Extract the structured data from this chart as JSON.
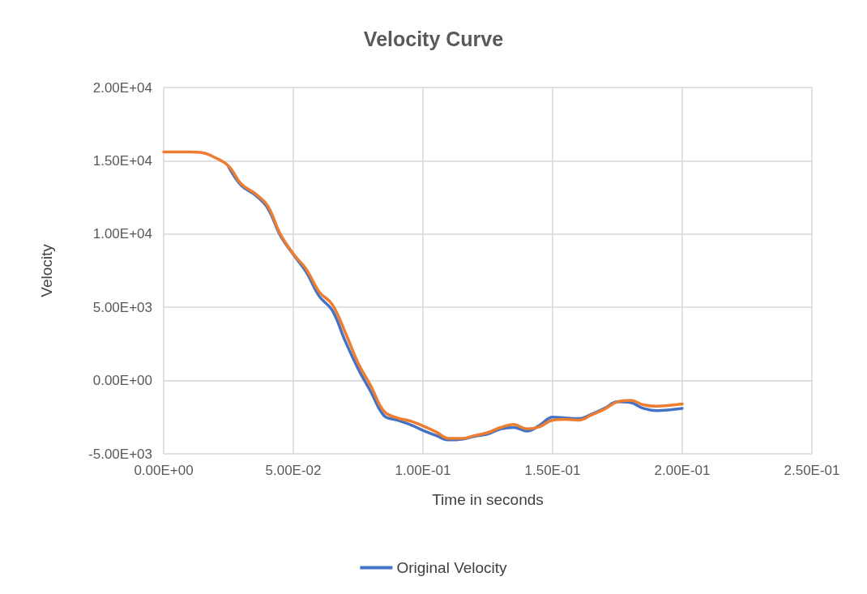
{
  "chart_data": {
    "type": "line",
    "title": "Velocity Curve",
    "xlabel": "Time in seconds",
    "ylabel": "Velocity",
    "x": [
      0,
      0.005,
      0.01,
      0.015,
      0.02,
      0.025,
      0.03,
      0.035,
      0.04,
      0.045,
      0.05,
      0.055,
      0.06,
      0.065,
      0.07,
      0.075,
      0.08,
      0.085,
      0.09,
      0.095,
      0.1,
      0.105,
      0.11,
      0.115,
      0.12,
      0.125,
      0.13,
      0.135,
      0.14,
      0.145,
      0.15,
      0.155,
      0.16,
      0.165,
      0.17,
      0.175,
      0.18,
      0.185,
      0.19,
      0.195,
      0.2
    ],
    "series": [
      {
        "name": "Original Velocity",
        "color": "#4472c4",
        "values": [
          null,
          null,
          null,
          null,
          null,
          14600,
          13300,
          12700,
          11800,
          9900,
          8600,
          7400,
          5750,
          4800,
          2700,
          800,
          -800,
          -2400,
          -2700,
          -3000,
          -3400,
          -3750,
          -4050,
          -4000,
          -3800,
          -3650,
          -3300,
          -3200,
          -3450,
          -3050,
          -2500,
          -2550,
          -2600,
          -2300,
          -1900,
          -1450,
          -1500,
          -1900,
          -2050,
          -2000,
          -1900
        ]
      },
      {
        "color": "#ed7d31",
        "values": [
          15600,
          15600,
          15600,
          15550,
          15200,
          14650,
          13400,
          12800,
          11950,
          10000,
          8650,
          7600,
          6050,
          5200,
          3300,
          1200,
          -400,
          -2100,
          -2550,
          -2750,
          -3100,
          -3500,
          -3950,
          -3950,
          -3750,
          -3550,
          -3200,
          -3000,
          -3300,
          -3150,
          -2700,
          -2650,
          -2700,
          -2350,
          -1950,
          -1450,
          -1350,
          -1650,
          -1750,
          -1700,
          -1600
        ]
      }
    ],
    "xlim": [
      0,
      0.25
    ],
    "xticks": [
      {
        "value": 0,
        "label": "0.00E+00"
      },
      {
        "value": 0.05,
        "label": "5.00E-02"
      },
      {
        "value": 0.1,
        "label": "1.00E-01"
      },
      {
        "value": 0.15,
        "label": "1.50E-01"
      },
      {
        "value": 0.2,
        "label": "2.00E-01"
      },
      {
        "value": 0.25,
        "label": "2.50E-01"
      }
    ],
    "ylim": [
      -5000,
      20000
    ],
    "yticks": [
      {
        "value": -5000,
        "label": "-5.00E+03"
      },
      {
        "value": 0,
        "label": "0.00E+00"
      },
      {
        "value": 5000,
        "label": "5.00E+03"
      },
      {
        "value": 10000,
        "label": "1.00E+04"
      },
      {
        "value": 15000,
        "label": "1.50E+04"
      },
      {
        "value": 20000,
        "label": "2.00E+04"
      }
    ],
    "grid": true,
    "legend": "bottom",
    "marker": "none",
    "line_style": "solid"
  }
}
